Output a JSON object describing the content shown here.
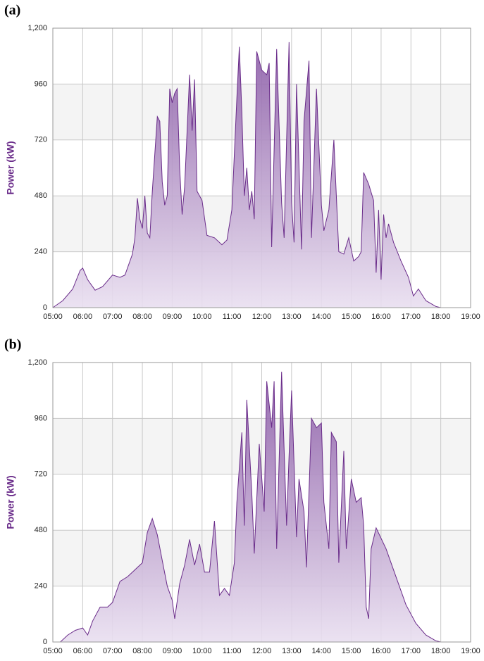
{
  "chart_data": [
    {
      "type": "area",
      "title": "(a)",
      "ylabel": "Power (kW)",
      "color": "#6a2c8a",
      "grid": true,
      "bands": true,
      "xlim": [
        "05:00",
        "19:00"
      ],
      "xticks": [
        "05:00",
        "06:00",
        "07:00",
        "08:00",
        "09:00",
        "10:00",
        "11:00",
        "12:00",
        "13:00",
        "14:00",
        "15:00",
        "16:00",
        "17:00",
        "18:00",
        "19:00"
      ],
      "ylim": [
        0,
        1200
      ],
      "yticks": [
        0,
        240,
        480,
        720,
        960,
        {
          "value": 1200,
          "label": "1,200"
        }
      ],
      "x": [
        "05:00",
        "05:20",
        "05:40",
        "05:55",
        "06:00",
        "06:10",
        "06:25",
        "06:40",
        "07:00",
        "07:15",
        "07:25",
        "07:40",
        "07:45",
        "07:50",
        "07:55",
        "08:00",
        "08:05",
        "08:10",
        "08:15",
        "08:20",
        "08:30",
        "08:35",
        "08:40",
        "08:45",
        "08:50",
        "08:55",
        "09:00",
        "09:05",
        "09:10",
        "09:15",
        "09:20",
        "09:25",
        "09:35",
        "09:40",
        "09:45",
        "09:50",
        "10:00",
        "10:10",
        "10:25",
        "10:40",
        "10:50",
        "11:00",
        "11:10",
        "11:15",
        "11:20",
        "11:25",
        "11:30",
        "11:35",
        "11:40",
        "11:45",
        "11:50",
        "12:00",
        "12:10",
        "12:15",
        "12:20",
        "12:30",
        "12:40",
        "12:45",
        "12:55",
        "13:00",
        "13:05",
        "13:10",
        "13:20",
        "13:25",
        "13:35",
        "13:40",
        "13:50",
        "14:00",
        "14:05",
        "14:15",
        "14:25",
        "14:35",
        "14:45",
        "14:55",
        "15:05",
        "15:15",
        "15:20",
        "15:25",
        "15:35",
        "15:45",
        "15:50",
        "15:55",
        "16:00",
        "16:05",
        "16:10",
        "16:15",
        "16:25",
        "16:40",
        "16:55",
        "17:05",
        "17:15",
        "17:30",
        "17:50",
        "18:00"
      ],
      "values": [
        0,
        30,
        80,
        160,
        170,
        120,
        75,
        90,
        140,
        130,
        140,
        230,
        300,
        470,
        380,
        340,
        480,
        320,
        300,
        500,
        820,
        800,
        540,
        440,
        480,
        940,
        880,
        920,
        940,
        600,
        400,
        520,
        1000,
        760,
        980,
        500,
        460,
        310,
        300,
        270,
        290,
        420,
        900,
        1120,
        840,
        480,
        600,
        420,
        500,
        380,
        1100,
        1020,
        1000,
        1050,
        260,
        1110,
        450,
        300,
        1140,
        450,
        280,
        960,
        250,
        800,
        1060,
        300,
        940,
        440,
        330,
        420,
        720,
        240,
        230,
        300,
        200,
        220,
        240,
        580,
        530,
        460,
        150,
        420,
        120,
        400,
        300,
        360,
        280,
        200,
        130,
        50,
        80,
        30,
        5,
        0
      ]
    },
    {
      "type": "area",
      "title": "(b)",
      "ylabel": "Power (kW)",
      "color": "#6a2c8a",
      "grid": true,
      "bands": true,
      "xlim": [
        "05:00",
        "19:00"
      ],
      "xticks": [
        "05:00",
        "06:00",
        "07:00",
        "08:00",
        "09:00",
        "10:00",
        "11:00",
        "12:00",
        "13:00",
        "14:00",
        "15:00",
        "16:00",
        "17:00",
        "18:00",
        "19:00"
      ],
      "ylim": [
        0,
        1200
      ],
      "yticks": [
        0,
        240,
        480,
        720,
        960,
        {
          "value": 1200,
          "label": "1,200"
        }
      ],
      "x": [
        "05:15",
        "05:30",
        "05:45",
        "06:00",
        "06:10",
        "06:20",
        "06:35",
        "06:50",
        "07:00",
        "07:15",
        "07:30",
        "07:40",
        "07:50",
        "08:00",
        "08:10",
        "08:20",
        "08:30",
        "08:40",
        "08:50",
        "09:00",
        "09:05",
        "09:15",
        "09:25",
        "09:35",
        "09:45",
        "09:55",
        "10:05",
        "10:15",
        "10:25",
        "10:35",
        "10:45",
        "10:55",
        "11:05",
        "11:10",
        "11:20",
        "11:25",
        "11:30",
        "11:40",
        "11:45",
        "11:55",
        "12:05",
        "12:10",
        "12:20",
        "12:25",
        "12:30",
        "12:40",
        "12:50",
        "12:55",
        "13:00",
        "13:10",
        "13:15",
        "13:25",
        "13:30",
        "13:40",
        "13:50",
        "14:00",
        "14:05",
        "14:15",
        "14:20",
        "14:30",
        "14:35",
        "14:45",
        "14:50",
        "15:00",
        "15:10",
        "15:20",
        "15:25",
        "15:30",
        "15:35",
        "15:40",
        "15:50",
        "16:10",
        "16:30",
        "16:50",
        "17:10",
        "17:30",
        "17:50",
        "18:00"
      ],
      "values": [
        0,
        30,
        50,
        60,
        30,
        90,
        150,
        150,
        170,
        260,
        280,
        300,
        320,
        340,
        470,
        530,
        460,
        350,
        240,
        180,
        100,
        250,
        330,
        440,
        330,
        420,
        300,
        300,
        520,
        200,
        230,
        200,
        340,
        600,
        900,
        500,
        1040,
        640,
        380,
        850,
        560,
        1120,
        920,
        1120,
        400,
        1160,
        500,
        800,
        1080,
        450,
        700,
        560,
        320,
        960,
        920,
        940,
        600,
        400,
        900,
        860,
        340,
        820,
        400,
        700,
        600,
        620,
        500,
        150,
        100,
        400,
        490,
        400,
        280,
        160,
        80,
        30,
        5,
        0
      ]
    }
  ]
}
